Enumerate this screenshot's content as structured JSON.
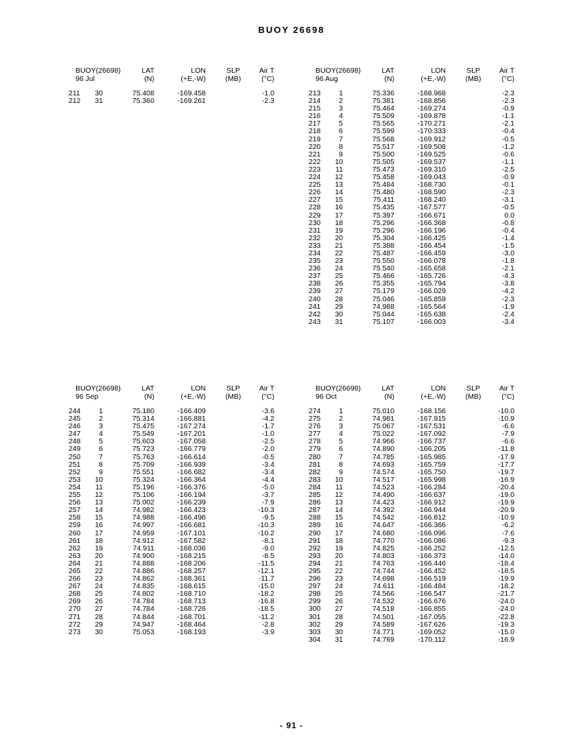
{
  "title": "BUOY 26698",
  "footer": "- 91 -",
  "tables": [
    {
      "header": {
        "buoy": "BUOY(26698)",
        "period": "96 Jul",
        "lat": "LAT",
        "lat_unit": "(N)",
        "lon": "LON",
        "lon_unit": "(+E,-W)",
        "slp": "SLP",
        "slp_unit": "(MB)",
        "airt": "Air T",
        "airt_unit": "(°C)"
      },
      "rows": [
        [
          "211",
          "30",
          "75.408",
          "-169.458",
          "",
          "-1.0"
        ],
        [
          "212",
          "31",
          "75.360",
          "-169.261",
          "",
          "-2.3"
        ]
      ]
    },
    {
      "header": {
        "buoy": "BUOY(26698)",
        "period": "96 Aug",
        "lat": "LAT",
        "lat_unit": "(N)",
        "lon": "LON",
        "lon_unit": "(+E,-W)",
        "slp": "SLP",
        "slp_unit": "(MB)",
        "airt": "Air T",
        "airt_unit": "(°C)"
      },
      "rows": [
        [
          "213",
          "1",
          "75.336",
          "-168.968",
          "",
          "-2.3"
        ],
        [
          "214",
          "2",
          "75.381",
          "-168.856",
          "",
          "-2.3"
        ],
        [
          "215",
          "3",
          "75.464",
          "-169.274",
          "",
          "-0.9"
        ],
        [
          "216",
          "4",
          "75.509",
          "-169.878",
          "",
          "-1.1"
        ],
        [
          "217",
          "5",
          "75.565",
          "-170.271",
          "",
          "-2.1"
        ],
        [
          "218",
          "6",
          "75.599",
          "-170.333",
          "",
          "-0.4"
        ],
        [
          "219",
          "7",
          "75.568",
          "-169.912",
          "",
          "-0.5"
        ],
        [
          "220",
          "8",
          "75.517",
          "-169.508",
          "",
          "-1.2"
        ],
        [
          "221",
          "9",
          "75.500",
          "-169.525",
          "",
          "-0.6"
        ],
        [
          "222",
          "10",
          "75.505",
          "-169.537",
          "",
          "-1.1"
        ],
        [
          "223",
          "11",
          "75.473",
          "-169.310",
          "",
          "-2.5"
        ],
        [
          "224",
          "12",
          "75.458",
          "-169.043",
          "",
          "-0.9"
        ],
        [
          "225",
          "13",
          "75.484",
          "-168.730",
          "",
          "-0.1"
        ],
        [
          "226",
          "14",
          "75.480",
          "-168.590",
          "",
          "-2.3"
        ],
        [
          "227",
          "15",
          "75.411",
          "-168.240",
          "",
          "-3.1"
        ],
        [
          "228",
          "16",
          "75.435",
          "-167.577",
          "",
          "-0.5"
        ],
        [
          "229",
          "17",
          "75.397",
          "-166.671",
          "",
          "0.0"
        ],
        [
          "230",
          "18",
          "75.296",
          "-166.368",
          "",
          "-0.8"
        ],
        [
          "231",
          "19",
          "75.296",
          "-166.196",
          "",
          "-0.4"
        ],
        [
          "232",
          "20",
          "75.304",
          "-166.425",
          "",
          "-1.4"
        ],
        [
          "233",
          "21",
          "75.388",
          "-166.454",
          "",
          "-1.5"
        ],
        [
          "234",
          "22",
          "75.487",
          "-166.459",
          "",
          "-3.0"
        ],
        [
          "235",
          "23",
          "75.550",
          "-166.078",
          "",
          "-1.8"
        ],
        [
          "236",
          "24",
          "75.540",
          "-165.658",
          "",
          "-2.1"
        ],
        [
          "237",
          "25",
          "75.466",
          "-165.726",
          "",
          "-4.3"
        ],
        [
          "238",
          "26",
          "75.355",
          "-165.794",
          "",
          "-3.8"
        ],
        [
          "239",
          "27",
          "75.179",
          "-166.029",
          "",
          "-4.2"
        ],
        [
          "240",
          "28",
          "75.046",
          "-165.859",
          "",
          "-2.3"
        ],
        [
          "241",
          "29",
          "74.988",
          "-165.564",
          "",
          "-1.9"
        ],
        [
          "242",
          "30",
          "75.044",
          "-165.638",
          "",
          "-2.4"
        ],
        [
          "243",
          "31",
          "75.107",
          "-166.003",
          "",
          "-3.4"
        ]
      ]
    },
    {
      "header": {
        "buoy": "BUOY(26698)",
        "period": "96 Sep",
        "lat": "LAT",
        "lat_unit": "(N)",
        "lon": "LON",
        "lon_unit": "(+E,-W)",
        "slp": "SLP",
        "slp_unit": "(MB)",
        "airt": "Air T",
        "airt_unit": "(°C)"
      },
      "rows": [
        [
          "244",
          "1",
          "75.180",
          "-166.409",
          "",
          "-3.6"
        ],
        [
          "245",
          "2",
          "75.314",
          "-166.881",
          "",
          "-4.2"
        ],
        [
          "246",
          "3",
          "75.475",
          "-167.274",
          "",
          "-1.7"
        ],
        [
          "247",
          "4",
          "75.549",
          "-167.201",
          "",
          "-1.0"
        ],
        [
          "248",
          "5",
          "75.603",
          "-167.058",
          "",
          "-2.5"
        ],
        [
          "249",
          "6",
          "75.723",
          "-166.779",
          "",
          "-2.0"
        ],
        [
          "250",
          "7",
          "75.763",
          "-166.614",
          "",
          "-0.5"
        ],
        [
          "251",
          "8",
          "75.709",
          "-166.939",
          "",
          "-3.4"
        ],
        [
          "252",
          "9",
          "75.551",
          "-166.682",
          "",
          "-3.4"
        ],
        [
          "253",
          "10",
          "75.324",
          "-166.364",
          "",
          "-4.4"
        ],
        [
          "254",
          "11",
          "75.196",
          "-166.376",
          "",
          "-5.0"
        ],
        [
          "255",
          "12",
          "75.106",
          "-166.194",
          "",
          "-3.7"
        ],
        [
          "256",
          "13",
          "75.002",
          "-166.239",
          "",
          "-7.9"
        ],
        [
          "257",
          "14",
          "74.982",
          "-166.423",
          "",
          "-10.3"
        ],
        [
          "258",
          "15",
          "74.988",
          "-166.496",
          "",
          "-9.5"
        ],
        [
          "259",
          "16",
          "74.997",
          "-166.681",
          "",
          "-10.3"
        ],
        [
          "260",
          "17",
          "74.959",
          "-167.101",
          "",
          "-10.2"
        ],
        [
          "261",
          "18",
          "74.912",
          "-167.582",
          "",
          "-8.1"
        ],
        [
          "262",
          "19",
          "74.911",
          "-168.036",
          "",
          "-9.0"
        ],
        [
          "263",
          "20",
          "74.900",
          "-168.215",
          "",
          "-8.5"
        ],
        [
          "264",
          "21",
          "74.888",
          "-168.206",
          "",
          "-11.5"
        ],
        [
          "265",
          "22",
          "74.886",
          "-168.257",
          "",
          "-12.1"
        ],
        [
          "266",
          "23",
          "74.862",
          "-168.361",
          "",
          "-11.7"
        ],
        [
          "267",
          "24",
          "74.835",
          "-168.615",
          "",
          "-15.0"
        ],
        [
          "268",
          "25",
          "74.802",
          "-168.710",
          "",
          "-18.2"
        ],
        [
          "269",
          "26",
          "74.784",
          "-168.713",
          "",
          "-16.8"
        ],
        [
          "270",
          "27",
          "74.784",
          "-168.726",
          "",
          "-18.5"
        ],
        [
          "271",
          "28",
          "74.844",
          "-168.701",
          "",
          "-11.2"
        ],
        [
          "272",
          "29",
          "74.947",
          "-168.464",
          "",
          "-2.8"
        ],
        [
          "273",
          "30",
          "75.053",
          "-168.193",
          "",
          "-3.9"
        ]
      ]
    },
    {
      "header": {
        "buoy": "BUOY(26698)",
        "period": "96 Oct",
        "lat": "LAT",
        "lat_unit": "(N)",
        "lon": "LON",
        "lon_unit": "(+E,-W)",
        "slp": "SLP",
        "slp_unit": "(MB)",
        "airt": "Air T",
        "airt_unit": "(°C)"
      },
      "rows": [
        [
          "274",
          "1",
          "75.010",
          "-168.156",
          "",
          "-10.0"
        ],
        [
          "275",
          "2",
          "74.981",
          "-167.915",
          "",
          "-10.9"
        ],
        [
          "276",
          "3",
          "75.067",
          "-167.531",
          "",
          "-6.6"
        ],
        [
          "277",
          "4",
          "75.022",
          "-167.092",
          "",
          "-7.9"
        ],
        [
          "278",
          "5",
          "74.966",
          "-166.737",
          "",
          "-6.6"
        ],
        [
          "279",
          "6",
          "74.890",
          "-166.205",
          "",
          "-11.8"
        ],
        [
          "280",
          "7",
          "74.785",
          "-165.985",
          "",
          "-17.9"
        ],
        [
          "281",
          "8",
          "74.693",
          "-165.759",
          "",
          "-17.7"
        ],
        [
          "282",
          "9",
          "74.574",
          "-165.750",
          "",
          "-19.7"
        ],
        [
          "283",
          "10",
          "74.517",
          "-165.998",
          "",
          "-16.9"
        ],
        [
          "284",
          "11",
          "74.523",
          "-166.284",
          "",
          "-20.4"
        ],
        [
          "285",
          "12",
          "74.490",
          "-166.637",
          "",
          "-19.0"
        ],
        [
          "286",
          "13",
          "74.423",
          "-166.912",
          "",
          "-19.9"
        ],
        [
          "287",
          "14",
          "74.392",
          "-166.944",
          "",
          "-20.9"
        ],
        [
          "288",
          "15",
          "74.542",
          "-166.812",
          "",
          "-10.9"
        ],
        [
          "289",
          "16",
          "74.647",
          "-166.366",
          "",
          "-6.2"
        ],
        [
          "290",
          "17",
          "74.680",
          "-166.096",
          "",
          "-7.6"
        ],
        [
          "291",
          "18",
          "74.770",
          "-166.086",
          "",
          "-9.3"
        ],
        [
          "292",
          "19",
          "74.825",
          "-166.252",
          "",
          "-12.5"
        ],
        [
          "293",
          "20",
          "74.803",
          "-166.373",
          "",
          "-14.0"
        ],
        [
          "294",
          "21",
          "74.763",
          "-166.446",
          "",
          "-18.4"
        ],
        [
          "295",
          "22",
          "74.744",
          "-166.452",
          "",
          "-18.5"
        ],
        [
          "296",
          "23",
          "74.698",
          "-166.519",
          "",
          "-19.9"
        ],
        [
          "297",
          "24",
          "74.611",
          "-166.484",
          "",
          "-18.2"
        ],
        [
          "298",
          "25",
          "74.566",
          "-166.547",
          "",
          "-21.7"
        ],
        [
          "299",
          "26",
          "74.532",
          "-166.676",
          "",
          "-24.0"
        ],
        [
          "300",
          "27",
          "74.518",
          "-166.855",
          "",
          "-24.0"
        ],
        [
          "301",
          "28",
          "74.501",
          "-167.055",
          "",
          "-22.8"
        ],
        [
          "302",
          "29",
          "74.589",
          "-167.626",
          "",
          "-19.3"
        ],
        [
          "303",
          "30",
          "74.771",
          "-169.052",
          "",
          "-15.0"
        ],
        [
          "304",
          "31",
          "74.769",
          "-170.112",
          "",
          "-16.9"
        ]
      ]
    }
  ]
}
